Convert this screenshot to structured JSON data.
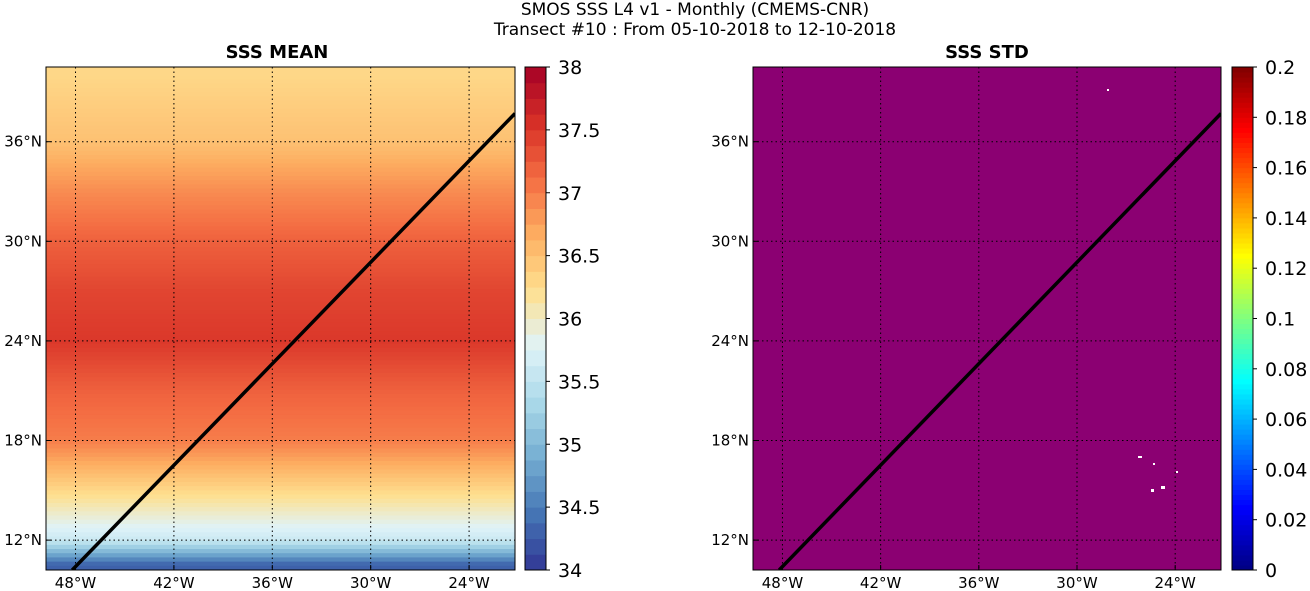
{
  "figure": {
    "suptitle_line1": "SMOS SSS L4 v1 - Monthly (CMEMS-CNR)",
    "suptitle_line2": "Transect #10 : From 05-10-2018 to 12-10-2018"
  },
  "chart_data": [
    {
      "type": "heatmap",
      "title": "SSS MEAN",
      "xlabel": "",
      "ylabel": "",
      "x_ticks": [
        "48°W",
        "42°W",
        "36°W",
        "30°W",
        "24°W"
      ],
      "x_tick_values": [
        -48,
        -42,
        -36,
        -30,
        -24
      ],
      "y_ticks": [
        "12°N",
        "18°N",
        "24°N",
        "30°N",
        "36°N"
      ],
      "y_tick_values": [
        12,
        18,
        24,
        30,
        36
      ],
      "xlim": [
        -49.8,
        -21.2
      ],
      "ylim": [
        10.2,
        40.5
      ],
      "grid": true,
      "colorbar": {
        "colormap": "RdYlBu_r",
        "range": [
          34,
          38
        ],
        "ticks": [
          "34",
          "34.5",
          "35",
          "35.5",
          "36",
          "36.5",
          "37",
          "37.5",
          "38"
        ],
        "levels": 32
      },
      "field_description_levels": [
        {
          "lat": 40,
          "value": 36.3
        },
        {
          "lat": 36,
          "value": 36.5
        },
        {
          "lat": 33,
          "value": 36.9
        },
        {
          "lat": 30,
          "value": 37.2
        },
        {
          "lat": 27,
          "value": 37.4
        },
        {
          "lat": 24,
          "value": 37.5
        },
        {
          "lat": 21,
          "value": 37.2
        },
        {
          "lat": 18,
          "value": 37.0
        },
        {
          "lat": 15,
          "value": 36.3
        },
        {
          "lat": 12,
          "value": 35.6
        },
        {
          "lat": 10.5,
          "value": 34.3
        }
      ],
      "transect": {
        "start": {
          "lon": -48.2,
          "lat": 10.2
        },
        "end": {
          "lon": -21.2,
          "lat": 37.7
        },
        "color": "#000000"
      }
    },
    {
      "type": "heatmap",
      "title": "SSS STD",
      "xlabel": "",
      "ylabel": "",
      "x_ticks": [
        "48°W",
        "42°W",
        "36°W",
        "30°W",
        "24°W"
      ],
      "x_tick_values": [
        -48,
        -42,
        -36,
        -30,
        -24
      ],
      "y_ticks": [
        "12°N",
        "18°N",
        "24°N",
        "30°N",
        "36°N"
      ],
      "y_tick_values": [
        12,
        18,
        24,
        30,
        36
      ],
      "xlim": [
        -49.8,
        -21.2
      ],
      "ylim": [
        10.2,
        40.5
      ],
      "grid": true,
      "field_value": 0,
      "colorbar": {
        "colormap": "jet",
        "range": [
          0,
          0.2
        ],
        "ticks": [
          "0",
          "0.02",
          "0.04",
          "0.06",
          "0.08",
          "0.1",
          "0.12",
          "0.14",
          "0.16",
          "0.18",
          "0.2"
        ]
      },
      "transect": {
        "start": {
          "lon": -48.2,
          "lat": 10.2
        },
        "end": {
          "lon": -21.2,
          "lat": 37.7
        },
        "color": "#000000"
      }
    }
  ],
  "colors": {
    "std_field": "#8b0072",
    "transect": "#000000"
  }
}
